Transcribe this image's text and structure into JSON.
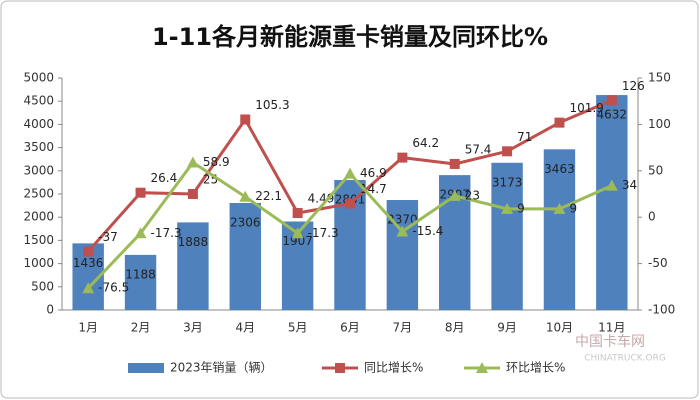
{
  "chart_data": {
    "type": "bar-line",
    "title": "1-11各月新能源重卡销量及同环比%",
    "categories": [
      "1月",
      "2月",
      "3月",
      "4月",
      "5月",
      "6月",
      "7月",
      "8月",
      "9月",
      "10月",
      "11月"
    ],
    "series": [
      {
        "name": "2023年销量（辆）",
        "type": "bar",
        "color": "#4f81bd",
        "values": [
          1436,
          1188,
          1888,
          2306,
          1907,
          2801,
          2370,
          2907,
          3173,
          3463,
          4632
        ]
      },
      {
        "name": "同比增长%",
        "type": "line",
        "axis": "y2",
        "color": "#c0504d",
        "values": [
          -37,
          26.4,
          25,
          105.3,
          4.49,
          14.7,
          64.2,
          57.4,
          71,
          101.9,
          126
        ]
      },
      {
        "name": "环比增长%",
        "type": "line",
        "axis": "y2",
        "color": "#9bbb59",
        "values": [
          -76.5,
          -17.3,
          58.9,
          22.1,
          -17.3,
          46.9,
          -15.4,
          23,
          9,
          9,
          34
        ]
      }
    ],
    "ylim": [
      0,
      5000
    ],
    "yticks": [
      0,
      500,
      1000,
      1500,
      2000,
      2500,
      3000,
      3500,
      4000,
      4500,
      5000
    ],
    "y2lim": [
      -100,
      150
    ],
    "y2ticks": [
      -100,
      -50,
      0,
      50,
      100,
      150
    ],
    "watermark": [
      "中国卡车网",
      "CHINATRUCK.ORG"
    ]
  }
}
